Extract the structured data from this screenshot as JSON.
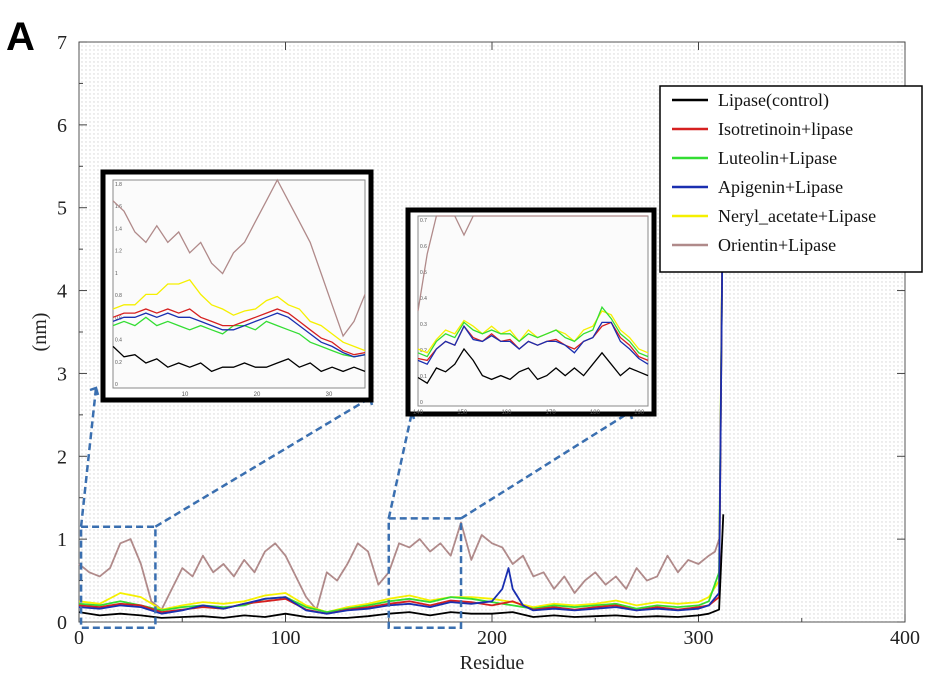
{
  "panel_label": "A",
  "chart_data": {
    "type": "line",
    "title": "",
    "xlabel": "Residue",
    "ylabel": "(nm)",
    "xlim": [
      0,
      400
    ],
    "ylim": [
      0,
      7
    ],
    "x_ticks": [
      "0",
      "100",
      "200",
      "300",
      "400"
    ],
    "y_ticks": [
      "0",
      "1",
      "2",
      "3",
      "4",
      "5",
      "6",
      "7"
    ],
    "grid": false,
    "legend_position": "top-right",
    "series": [
      {
        "name": "Lipase(control)",
        "color": "#000000",
        "x": [
          0,
          10,
          20,
          30,
          40,
          50,
          60,
          70,
          80,
          90,
          100,
          110,
          120,
          130,
          140,
          150,
          160,
          170,
          180,
          190,
          200,
          210,
          220,
          230,
          240,
          250,
          260,
          270,
          280,
          290,
          300,
          305,
          310,
          312
        ],
        "y": [
          0.12,
          0.08,
          0.1,
          0.08,
          0.05,
          0.06,
          0.07,
          0.05,
          0.08,
          0.06,
          0.1,
          0.06,
          0.05,
          0.05,
          0.07,
          0.1,
          0.12,
          0.08,
          0.12,
          0.1,
          0.1,
          0.12,
          0.06,
          0.08,
          0.06,
          0.07,
          0.08,
          0.06,
          0.07,
          0.06,
          0.08,
          0.1,
          0.15,
          1.3
        ]
      },
      {
        "name": "Isotretinoin+lipase",
        "color": "#d62020",
        "x": [
          0,
          10,
          20,
          30,
          40,
          50,
          60,
          70,
          80,
          90,
          100,
          110,
          120,
          130,
          140,
          150,
          160,
          170,
          180,
          190,
          200,
          210,
          220,
          230,
          240,
          250,
          260,
          270,
          280,
          290,
          300,
          305,
          310,
          312
        ],
        "y": [
          0.2,
          0.18,
          0.22,
          0.2,
          0.12,
          0.15,
          0.18,
          0.16,
          0.22,
          0.25,
          0.28,
          0.15,
          0.1,
          0.15,
          0.18,
          0.22,
          0.25,
          0.2,
          0.26,
          0.24,
          0.2,
          0.25,
          0.15,
          0.18,
          0.15,
          0.18,
          0.2,
          0.14,
          0.18,
          0.15,
          0.18,
          0.2,
          0.3,
          5.8
        ]
      },
      {
        "name": "Luteolin+Lipase",
        "color": "#33dd33",
        "x": [
          0,
          10,
          20,
          30,
          40,
          50,
          60,
          70,
          80,
          90,
          100,
          110,
          120,
          130,
          140,
          150,
          160,
          170,
          180,
          190,
          200,
          210,
          220,
          230,
          240,
          250,
          260,
          270,
          280,
          290,
          300,
          305,
          310,
          312
        ],
        "y": [
          0.22,
          0.2,
          0.25,
          0.2,
          0.14,
          0.18,
          0.2,
          0.18,
          0.2,
          0.28,
          0.3,
          0.18,
          0.12,
          0.16,
          0.2,
          0.25,
          0.28,
          0.24,
          0.3,
          0.28,
          0.24,
          0.2,
          0.16,
          0.2,
          0.18,
          0.2,
          0.22,
          0.16,
          0.2,
          0.18,
          0.2,
          0.25,
          0.6,
          5.6
        ]
      },
      {
        "name": "Apigenin+Lipase",
        "color": "#1a2fb0",
        "x": [
          0,
          10,
          20,
          30,
          40,
          50,
          60,
          70,
          80,
          90,
          100,
          110,
          120,
          130,
          140,
          150,
          160,
          170,
          180,
          190,
          200,
          205,
          208,
          210,
          215,
          220,
          230,
          240,
          250,
          260,
          270,
          280,
          290,
          300,
          305,
          310,
          312
        ],
        "y": [
          0.18,
          0.16,
          0.2,
          0.18,
          0.1,
          0.14,
          0.2,
          0.16,
          0.22,
          0.28,
          0.3,
          0.14,
          0.1,
          0.14,
          0.16,
          0.2,
          0.22,
          0.18,
          0.24,
          0.22,
          0.25,
          0.4,
          0.65,
          0.4,
          0.2,
          0.14,
          0.16,
          0.14,
          0.16,
          0.18,
          0.14,
          0.16,
          0.14,
          0.16,
          0.2,
          0.35,
          5.7
        ]
      },
      {
        "name": "Neryl_acetate+Lipase",
        "color": "#f5f000",
        "x": [
          0,
          10,
          20,
          30,
          40,
          50,
          60,
          70,
          80,
          90,
          100,
          110,
          120,
          130,
          140,
          150,
          160,
          170,
          180,
          190,
          200,
          210,
          220,
          230,
          240,
          250,
          260,
          270,
          280,
          290,
          300,
          305,
          310,
          312
        ],
        "y": [
          0.25,
          0.22,
          0.35,
          0.3,
          0.15,
          0.2,
          0.24,
          0.22,
          0.25,
          0.32,
          0.35,
          0.2,
          0.12,
          0.18,
          0.22,
          0.28,
          0.32,
          0.26,
          0.3,
          0.3,
          0.28,
          0.24,
          0.18,
          0.22,
          0.2,
          0.22,
          0.26,
          0.2,
          0.24,
          0.22,
          0.24,
          0.3,
          0.5,
          5.9
        ]
      },
      {
        "name": "Orientin+Lipase",
        "color": "#b08a8a",
        "x": [
          0,
          5,
          10,
          15,
          20,
          25,
          30,
          35,
          40,
          45,
          50,
          55,
          60,
          65,
          70,
          75,
          80,
          85,
          90,
          95,
          100,
          105,
          110,
          115,
          120,
          125,
          130,
          135,
          140,
          145,
          150,
          155,
          160,
          165,
          170,
          175,
          180,
          185,
          190,
          195,
          200,
          205,
          210,
          215,
          220,
          225,
          230,
          235,
          240,
          245,
          250,
          255,
          260,
          265,
          270,
          275,
          280,
          285,
          290,
          295,
          300,
          305,
          308,
          310
        ],
        "y": [
          0.7,
          0.6,
          0.55,
          0.65,
          0.95,
          1.0,
          0.7,
          0.25,
          0.15,
          0.4,
          0.65,
          0.55,
          0.8,
          0.6,
          0.7,
          0.55,
          0.75,
          0.6,
          0.85,
          0.95,
          0.8,
          0.55,
          0.3,
          0.15,
          0.6,
          0.5,
          0.7,
          0.95,
          0.85,
          0.45,
          0.6,
          0.95,
          0.9,
          1.0,
          0.85,
          0.95,
          0.8,
          1.2,
          0.75,
          1.05,
          0.95,
          0.9,
          0.7,
          0.8,
          0.55,
          0.6,
          0.4,
          0.55,
          0.35,
          0.5,
          0.6,
          0.45,
          0.55,
          0.4,
          0.65,
          0.5,
          0.55,
          0.8,
          0.6,
          0.75,
          0.7,
          0.8,
          0.85,
          1.0
        ]
      }
    ]
  },
  "insets": [
    {
      "x_range": [
        0,
        35
      ],
      "tick_labels": [
        "10",
        "20",
        "30"
      ],
      "y_tick_labels": [
        "1.8",
        "1.6",
        "1.4",
        "1.2",
        "1",
        "0.8",
        "0.6",
        "0.4",
        "0.2",
        "0"
      ]
    },
    {
      "x_range": [
        140,
        192
      ],
      "tick_labels": [
        "140",
        "150",
        "160",
        "170",
        "180",
        "190"
      ],
      "y_tick_labels": [
        "0.7",
        "0.6",
        "0.5",
        "0.4",
        "0.3",
        "0.2",
        "0.1",
        "0"
      ]
    }
  ]
}
